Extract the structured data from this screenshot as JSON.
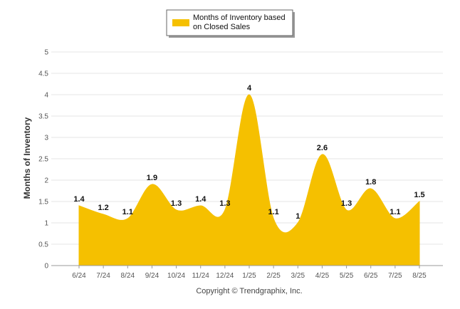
{
  "chart_data": {
    "type": "area",
    "categories": [
      "6/24",
      "7/24",
      "8/24",
      "9/24",
      "10/24",
      "11/24",
      "12/24",
      "1/25",
      "2/25",
      "3/25",
      "4/25",
      "5/25",
      "6/25",
      "7/25",
      "8/25"
    ],
    "series": [
      {
        "name": "Months of Inventory based on Closed Sales",
        "values": [
          1.4,
          1.2,
          1.1,
          1.9,
          1.3,
          1.4,
          1.3,
          4,
          1.1,
          1,
          2.6,
          1.3,
          1.8,
          1.1,
          1.5
        ],
        "color": "#F5C000"
      }
    ],
    "data_labels": [
      "1.4",
      "1.2",
      "1.1",
      "1.9",
      "1.3",
      "1.4",
      "1.3",
      "4",
      "1.1",
      "1",
      "2.6",
      "1.3",
      "1.8",
      "1.1",
      "1.5"
    ],
    "y_ticks": [
      "0",
      "0.5",
      "1",
      "1.5",
      "2",
      "2.5",
      "3",
      "3.5",
      "4",
      "4.5",
      "5"
    ],
    "ylabel": "Months of Inventory",
    "ylim": [
      0,
      5
    ],
    "grid": true,
    "legend": {
      "position": "top-center",
      "line1": "Months of Inventory based",
      "line2": "on Closed Sales"
    }
  },
  "footer": "Copyright © Trendgraphix, Inc."
}
